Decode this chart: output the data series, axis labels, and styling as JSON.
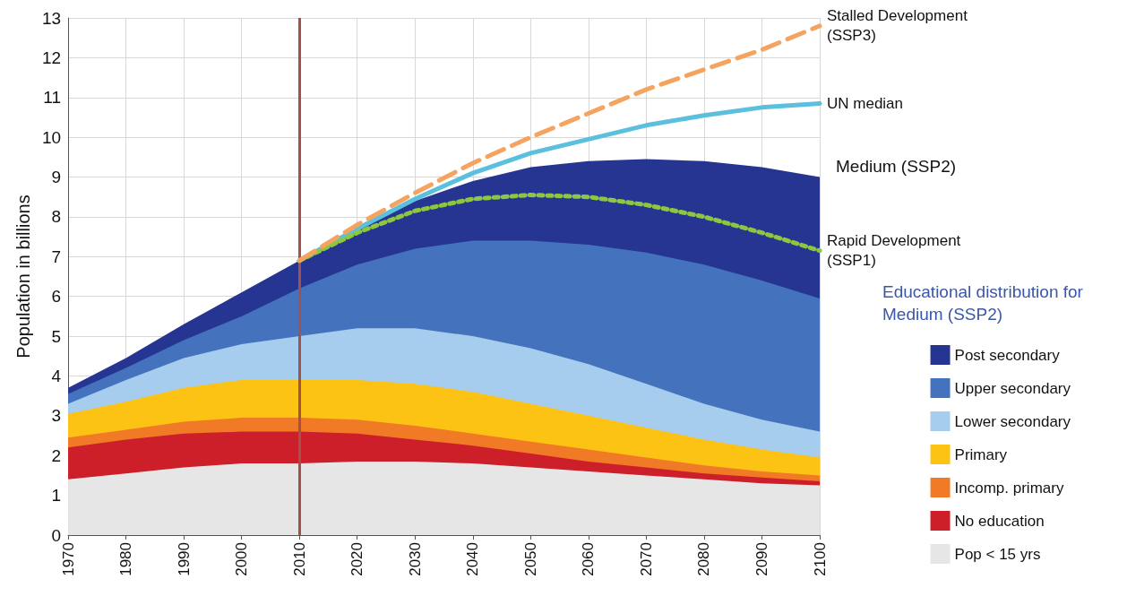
{
  "chart_data": {
    "type": "area",
    "stacked": true,
    "ylabel": "Population in billions",
    "legend_title": "Educational distribution for Medium (SSP2)",
    "legend": "right",
    "grid": true,
    "marker": "none",
    "x": [
      1970,
      1980,
      1990,
      2000,
      2010,
      2020,
      2030,
      2040,
      2050,
      2060,
      2070,
      2080,
      2090,
      2100
    ],
    "xlim": [
      1970,
      2100
    ],
    "xticks": [
      1970,
      1980,
      1990,
      2000,
      2010,
      2020,
      2030,
      2040,
      2050,
      2060,
      2070,
      2080,
      2090,
      2100
    ],
    "ylim": [
      0,
      13
    ],
    "yticks": [
      0,
      1,
      2,
      3,
      4,
      5,
      6,
      7,
      8,
      9,
      10,
      11,
      12,
      13
    ],
    "series": [
      {
        "name": "Pop < 15 yrs",
        "color": "#e6e6e6",
        "values": [
          1.4,
          1.55,
          1.7,
          1.8,
          1.8,
          1.85,
          1.85,
          1.8,
          1.7,
          1.6,
          1.5,
          1.4,
          1.3,
          1.25
        ]
      },
      {
        "name": "No education",
        "color": "#cc1f2a",
        "values": [
          0.8,
          0.85,
          0.85,
          0.8,
          0.8,
          0.7,
          0.55,
          0.45,
          0.35,
          0.25,
          0.2,
          0.15,
          0.15,
          0.1
        ]
      },
      {
        "name": "Incomp. primary",
        "color": "#f07a26",
        "values": [
          0.25,
          0.25,
          0.3,
          0.35,
          0.35,
          0.35,
          0.35,
          0.3,
          0.3,
          0.3,
          0.25,
          0.2,
          0.15,
          0.15
        ]
      },
      {
        "name": "Primary",
        "color": "#fcc314",
        "values": [
          0.6,
          0.7,
          0.85,
          0.95,
          0.95,
          1.0,
          1.05,
          1.05,
          0.95,
          0.85,
          0.75,
          0.65,
          0.55,
          0.45
        ]
      },
      {
        "name": "Lower secondary",
        "color": "#a6cdee",
        "values": [
          0.25,
          0.55,
          0.75,
          0.9,
          1.1,
          1.3,
          1.4,
          1.4,
          1.4,
          1.3,
          1.1,
          0.9,
          0.75,
          0.65
        ]
      },
      {
        "name": "Upper secondary",
        "color": "#4472bd",
        "values": [
          0.25,
          0.3,
          0.45,
          0.7,
          1.2,
          1.6,
          2.0,
          2.4,
          2.7,
          3.0,
          3.3,
          3.5,
          3.5,
          3.35
        ]
      },
      {
        "name": "Post secondary",
        "color": "#263592",
        "values": [
          0.15,
          0.25,
          0.4,
          0.6,
          0.7,
          0.9,
          1.2,
          1.5,
          1.85,
          2.1,
          2.35,
          2.6,
          2.85,
          3.05
        ]
      },
      {
        "name": "Stalled Development (SSP3)",
        "type": "line",
        "line_style": "dashed",
        "color": "#f4a460",
        "x": [
          2010,
          2020,
          2030,
          2040,
          2050,
          2060,
          2070,
          2080,
          2090,
          2100
        ],
        "values": [
          6.9,
          7.8,
          8.6,
          9.35,
          10.0,
          10.6,
          11.2,
          11.7,
          12.2,
          12.8
        ]
      },
      {
        "name": "UN median",
        "type": "line",
        "line_style": "solid",
        "color": "#5bc0de",
        "x": [
          2010,
          2020,
          2030,
          2040,
          2050,
          2060,
          2070,
          2080,
          2090,
          2100
        ],
        "values": [
          6.9,
          7.7,
          8.45,
          9.1,
          9.6,
          9.95,
          10.3,
          10.55,
          10.75,
          10.85
        ]
      },
      {
        "name": "Rapid Development (SSP1)",
        "type": "line",
        "line_style": "dotted",
        "color": "#8dc63f",
        "x": [
          2010,
          2020,
          2030,
          2040,
          2050,
          2060,
          2070,
          2080,
          2090,
          2100
        ],
        "values": [
          6.9,
          7.6,
          8.15,
          8.45,
          8.55,
          8.5,
          8.3,
          8.0,
          7.6,
          7.15
        ]
      }
    ],
    "ref_lines": [
      {
        "axis": "x",
        "value": 2010,
        "color": "#a0524d",
        "line_style": "solid"
      }
    ],
    "annotations": [
      "Medium (SSP2)"
    ]
  }
}
